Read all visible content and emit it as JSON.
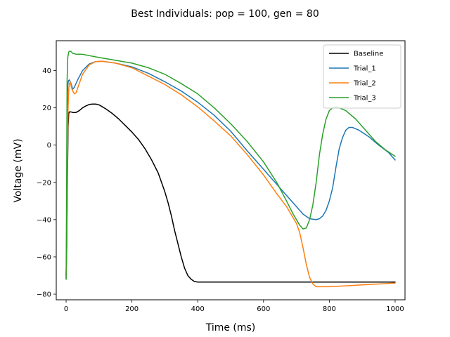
{
  "chart_data": {
    "type": "line",
    "title": "Best Individuals: pop = 100, gen = 80",
    "xlabel": "Time (ms)",
    "ylabel": "Voltage (mV)",
    "xlim": [
      -30,
      1030
    ],
    "ylim": [
      -83,
      56
    ],
    "xticks": [
      0,
      200,
      400,
      600,
      800,
      1000
    ],
    "yticks": [
      -80,
      -60,
      -40,
      -20,
      0,
      20,
      40
    ],
    "xtick_labels": [
      "0",
      "200",
      "400",
      "600",
      "800",
      "1000"
    ],
    "ytick_labels": [
      "−80",
      "−60",
      "−40",
      "−20",
      "0",
      "20",
      "40"
    ],
    "legend_position": "top-right",
    "grid": false,
    "series": [
      {
        "name": "Baseline",
        "color": "#000000",
        "points": [
          [
            0,
            -70
          ],
          [
            2,
            -55
          ],
          [
            4,
            -20
          ],
          [
            6,
            10
          ],
          [
            8,
            17
          ],
          [
            10,
            17.8
          ],
          [
            15,
            17.8
          ],
          [
            20,
            17.5
          ],
          [
            30,
            17.5
          ],
          [
            40,
            18.5
          ],
          [
            50,
            20
          ],
          [
            60,
            21
          ],
          [
            70,
            21.8
          ],
          [
            80,
            22
          ],
          [
            90,
            22
          ],
          [
            100,
            21.6
          ],
          [
            120,
            19.5
          ],
          [
            140,
            17
          ],
          [
            160,
            14
          ],
          [
            180,
            10.5
          ],
          [
            200,
            7
          ],
          [
            220,
            3
          ],
          [
            240,
            -2
          ],
          [
            260,
            -8
          ],
          [
            280,
            -15
          ],
          [
            300,
            -25
          ],
          [
            310,
            -31
          ],
          [
            320,
            -38
          ],
          [
            330,
            -46
          ],
          [
            340,
            -53
          ],
          [
            350,
            -60
          ],
          [
            360,
            -66
          ],
          [
            370,
            -70
          ],
          [
            380,
            -72
          ],
          [
            390,
            -73.2
          ],
          [
            400,
            -73.5
          ],
          [
            500,
            -73.5
          ],
          [
            600,
            -73.5
          ],
          [
            700,
            -73.5
          ],
          [
            800,
            -73.5
          ],
          [
            900,
            -73.5
          ],
          [
            1000,
            -73.5
          ]
        ]
      },
      {
        "name": "Trial_1",
        "color": "#1f77b4",
        "points": [
          [
            0,
            -72
          ],
          [
            2,
            -40
          ],
          [
            3,
            0
          ],
          [
            4,
            25
          ],
          [
            5,
            32
          ],
          [
            7,
            34.5
          ],
          [
            10,
            35
          ],
          [
            15,
            33
          ],
          [
            20,
            30
          ],
          [
            25,
            31
          ],
          [
            35,
            35
          ],
          [
            50,
            40
          ],
          [
            70,
            43.5
          ],
          [
            90,
            44.8
          ],
          [
            110,
            45
          ],
          [
            150,
            44
          ],
          [
            200,
            42
          ],
          [
            250,
            38.5
          ],
          [
            300,
            34
          ],
          [
            350,
            29
          ],
          [
            400,
            23
          ],
          [
            450,
            16
          ],
          [
            500,
            7.5
          ],
          [
            550,
            -3
          ],
          [
            600,
            -13
          ],
          [
            640,
            -21
          ],
          [
            670,
            -27
          ],
          [
            700,
            -33
          ],
          [
            720,
            -37
          ],
          [
            740,
            -39.5
          ],
          [
            760,
            -40
          ],
          [
            770,
            -39.5
          ],
          [
            780,
            -38
          ],
          [
            790,
            -35
          ],
          [
            800,
            -30
          ],
          [
            810,
            -23
          ],
          [
            820,
            -12
          ],
          [
            830,
            -2
          ],
          [
            840,
            4
          ],
          [
            850,
            8
          ],
          [
            860,
            9.5
          ],
          [
            870,
            9.5
          ],
          [
            890,
            8
          ],
          [
            920,
            4.5
          ],
          [
            950,
            0
          ],
          [
            980,
            -4
          ],
          [
            1000,
            -8
          ]
        ]
      },
      {
        "name": "Trial_2",
        "color": "#ff7f0e",
        "points": [
          [
            0,
            -70
          ],
          [
            2,
            -50
          ],
          [
            4,
            -10
          ],
          [
            6,
            20
          ],
          [
            8,
            30
          ],
          [
            10,
            33
          ],
          [
            13,
            33.8
          ],
          [
            16,
            31
          ],
          [
            20,
            29
          ],
          [
            25,
            27.5
          ],
          [
            30,
            28
          ],
          [
            40,
            33
          ],
          [
            50,
            38
          ],
          [
            70,
            43
          ],
          [
            90,
            44.8
          ],
          [
            110,
            45
          ],
          [
            150,
            44
          ],
          [
            200,
            41.5
          ],
          [
            250,
            37
          ],
          [
            300,
            32.5
          ],
          [
            350,
            27
          ],
          [
            400,
            20.5
          ],
          [
            450,
            13
          ],
          [
            500,
            5
          ],
          [
            550,
            -5
          ],
          [
            600,
            -16
          ],
          [
            640,
            -26
          ],
          [
            670,
            -33
          ],
          [
            700,
            -42
          ],
          [
            710,
            -47
          ],
          [
            720,
            -55
          ],
          [
            730,
            -64
          ],
          [
            740,
            -71
          ],
          [
            750,
            -74.5
          ],
          [
            760,
            -76
          ],
          [
            780,
            -76
          ],
          [
            800,
            -76
          ],
          [
            850,
            -75.5
          ],
          [
            900,
            -75
          ],
          [
            950,
            -74.5
          ],
          [
            1000,
            -74
          ]
        ]
      },
      {
        "name": "Trial_3",
        "color": "#2ca02c",
        "points": [
          [
            0,
            -72
          ],
          [
            1,
            -40
          ],
          [
            2,
            0
          ],
          [
            3,
            35
          ],
          [
            5,
            47
          ],
          [
            8,
            50
          ],
          [
            12,
            50.5
          ],
          [
            16,
            50
          ],
          [
            20,
            49.2
          ],
          [
            30,
            48.8
          ],
          [
            50,
            48.7
          ],
          [
            100,
            47
          ],
          [
            150,
            45.5
          ],
          [
            200,
            44
          ],
          [
            250,
            41.5
          ],
          [
            300,
            38
          ],
          [
            350,
            33
          ],
          [
            400,
            27.5
          ],
          [
            450,
            20
          ],
          [
            500,
            11.5
          ],
          [
            550,
            2
          ],
          [
            600,
            -9
          ],
          [
            640,
            -20
          ],
          [
            670,
            -30
          ],
          [
            690,
            -37
          ],
          [
            710,
            -43
          ],
          [
            720,
            -45
          ],
          [
            730,
            -44.5
          ],
          [
            740,
            -40
          ],
          [
            750,
            -32
          ],
          [
            760,
            -20
          ],
          [
            770,
            -5
          ],
          [
            780,
            6
          ],
          [
            790,
            14
          ],
          [
            800,
            18.5
          ],
          [
            810,
            20
          ],
          [
            820,
            20.5
          ],
          [
            830,
            20
          ],
          [
            850,
            18.5
          ],
          [
            880,
            14
          ],
          [
            910,
            8
          ],
          [
            940,
            2
          ],
          [
            970,
            -2.5
          ],
          [
            1000,
            -6
          ]
        ]
      }
    ]
  }
}
